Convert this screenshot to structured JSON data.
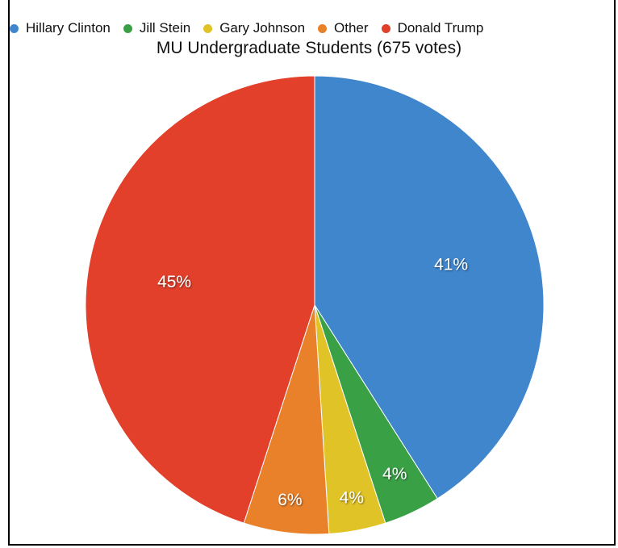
{
  "chart_data": {
    "type": "pie",
    "title": "MU Undergraduate Students (675 votes)",
    "legend_placement": "top",
    "series": [
      {
        "name": "Hillary Clinton",
        "value": 41,
        "label": "41%",
        "color": "#3f86cd"
      },
      {
        "name": "Jill Stein",
        "value": 4,
        "label": "4%",
        "color": "#3aa046"
      },
      {
        "name": "Gary Johnson",
        "value": 4,
        "label": "4%",
        "color": "#e0c326"
      },
      {
        "name": "Other",
        "value": 6,
        "label": "6%",
        "color": "#e8812a"
      },
      {
        "name": "Donald Trump",
        "value": 45,
        "label": "45%",
        "color": "#e2402a"
      }
    ]
  }
}
